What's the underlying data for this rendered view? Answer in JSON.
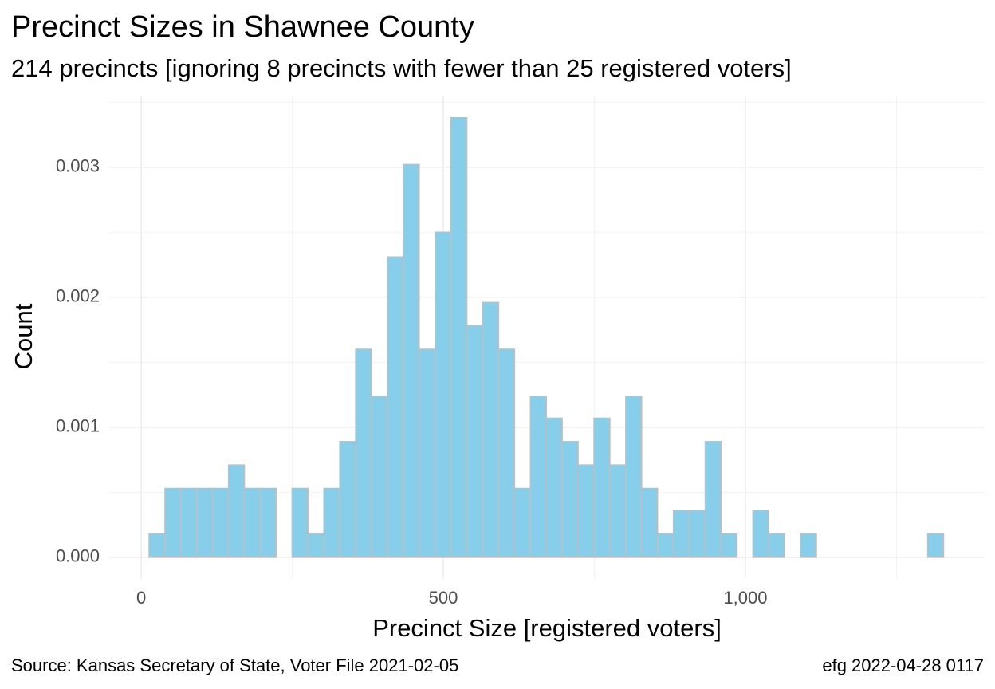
{
  "chart_data": {
    "type": "histogram",
    "title": "Precinct Sizes in Shawnee County",
    "subtitle": "214 precincts [ignoring 8 precincts with fewer than 25 registered voters]",
    "x_label": "Precinct Size [registered voters]",
    "y_label": "Count",
    "caption_left": "Source:  Kansas Secretary of State, Voter File  2021-02-05",
    "caption_right": "efg 2022-04-28 0117",
    "color": "#87ceeb",
    "edge_color": "#bebebe",
    "bins": [
      13,
      39.3,
      65.6,
      91.9,
      118.2,
      144.5,
      170.8,
      197.1,
      223.4,
      249.7,
      276,
      302.3,
      328.6,
      354.9,
      381.2,
      407.5,
      433.8,
      460.1,
      486.4,
      512.7,
      539,
      565.3,
      591.6,
      617.9,
      644.2,
      670.5,
      696.8,
      723.1,
      749.4,
      775.7,
      802,
      828.3,
      854.6,
      880.9,
      907.2,
      933.5,
      959.8,
      986.1,
      1012.4,
      1038.7,
      1065,
      1091.3,
      1117.6,
      1143.9,
      1170.2,
      1196.5,
      1222.8,
      1249.1,
      1275.4,
      1301.7,
      1328
    ],
    "values": [
      0.00018,
      0.00053,
      0.00053,
      0.00053,
      0.00053,
      0.00071,
      0.00053,
      0.00053,
      0,
      0.00053,
      0.00018,
      0.00053,
      0.00089,
      0.0016,
      0.00124,
      0.00231,
      0.00302,
      0.0016,
      0.0025,
      0.00338,
      0.00178,
      0.00196,
      0.0016,
      0.00053,
      0.00124,
      0.00107,
      0.00089,
      0.00071,
      0.00107,
      0.00071,
      0.00124,
      0.00053,
      0.00018,
      0.00036,
      0.00036,
      0.00089,
      0.00018,
      0,
      0.00036,
      0.00018,
      0,
      0.00018,
      0,
      0,
      0,
      0,
      0,
      0,
      0,
      0.00018
    ],
    "xlim": [
      -53,
      1396
    ],
    "ylim": [
      -0.00016,
      0.00355
    ],
    "xticks": [
      0,
      500,
      {
        "value": 1000,
        "label": "1,000"
      }
    ],
    "yticks": [
      {
        "value": 0,
        "label": "0.000"
      },
      {
        "value": 0.001,
        "label": "0.001"
      },
      {
        "value": 0.002,
        "label": "0.002"
      },
      {
        "value": 0.003,
        "label": "0.003"
      }
    ],
    "x_minor_ticks": [
      250,
      750,
      1250
    ],
    "y_minor_ticks": [
      0.0005,
      0.0015,
      0.0025,
      0.0035
    ],
    "grid": true
  }
}
